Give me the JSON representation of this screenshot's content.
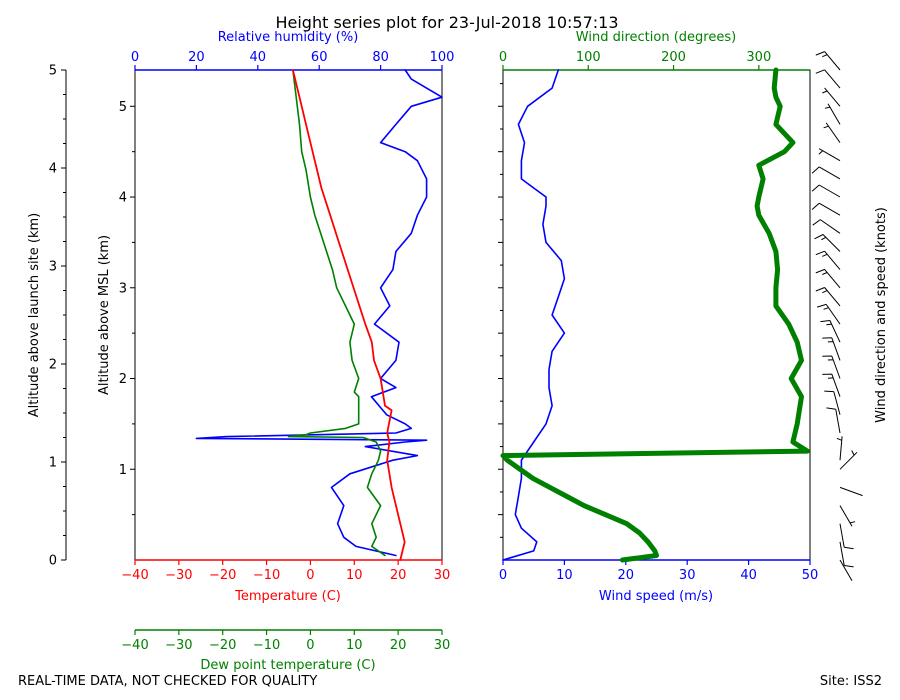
{
  "chart_data": {
    "type": "line",
    "title": "Height series plot for 23-Jul-2018 10:57:13",
    "colors": {
      "temp": "#ff0000",
      "dew": "#008000",
      "rh": "#0000ff",
      "wspd": "#0000ff",
      "wdir": "#008000",
      "barb": "#000000"
    },
    "left_panel": {
      "ylabel_inner": "Altitude above MSL (km)",
      "ylabel_outer": "Altitude above launch site (km)",
      "xlabel_temp": "Temperature (C)",
      "xlabel_dew": "Dew point temperature (C)",
      "xlabel_rh": "Relative humidity (%)",
      "temp_range": [
        -40,
        30
      ],
      "rh_range": [
        0,
        100
      ],
      "msl_range": [
        0.0,
        5.4
      ],
      "temp_ticks": [
        "−40",
        "−30",
        "−20",
        "−10",
        "0",
        "10",
        "20",
        "30"
      ],
      "dew_ticks": [
        "−40",
        "−30",
        "−20",
        "−10",
        "0",
        "10",
        "20",
        "30"
      ],
      "rh_ticks": [
        "0",
        "20",
        "40",
        "60",
        "80",
        "100"
      ],
      "msl_ticks": [
        "1",
        "2",
        "3",
        "4",
        "5"
      ],
      "agl_ticks": [
        "0",
        "1",
        "2",
        "3",
        "4",
        "5"
      ],
      "series": [
        {
          "name": "Temperature",
          "axis": "temp",
          "alt": [
            0.0,
            0.2,
            0.5,
            0.8,
            1.1,
            1.3,
            1.4,
            1.65,
            1.7,
            2.0,
            2.2,
            2.4,
            2.6,
            2.9,
            3.2,
            3.5,
            3.8,
            4.1,
            4.5,
            4.8,
            5.0,
            5.4
          ],
          "values": [
            20.5,
            21.5,
            20,
            18.5,
            17.5,
            18,
            17.5,
            18.5,
            17,
            16,
            14.5,
            14,
            12.5,
            10.5,
            8.5,
            6.5,
            4.5,
            2.5,
            0.5,
            -1,
            -2,
            -4
          ]
        },
        {
          "name": "Dew point",
          "axis": "temp",
          "alt": [
            0.05,
            0.15,
            0.25,
            0.4,
            0.6,
            0.8,
            0.95,
            1.1,
            1.2,
            1.3,
            1.35,
            1.36,
            1.38,
            1.4,
            1.45,
            1.5,
            1.8,
            1.85,
            2.0,
            2.2,
            2.4,
            2.6,
            2.8,
            3.0,
            3.2,
            3.5,
            3.8,
            4.0,
            4.3,
            4.5,
            4.8,
            5.0,
            5.4
          ],
          "values": [
            17,
            14,
            15,
            14,
            16,
            13,
            14,
            15.5,
            16,
            15,
            12,
            -5,
            -1,
            0,
            8,
            11,
            11,
            10,
            11,
            9.5,
            9,
            10,
            8,
            6,
            5,
            3,
            1,
            0,
            -1,
            -2,
            -2.5,
            -3,
            -4
          ]
        },
        {
          "name": "Relative humidity",
          "axis": "rh",
          "alt": [
            0.05,
            0.15,
            0.25,
            0.4,
            0.6,
            0.8,
            0.95,
            1.1,
            1.15,
            1.25,
            1.3,
            1.32,
            1.34,
            1.36,
            1.4,
            1.45,
            1.5,
            1.6,
            1.8,
            1.9,
            2.0,
            2.2,
            2.4,
            2.6,
            2.8,
            3.0,
            3.2,
            3.4,
            3.6,
            3.8,
            4.0,
            4.2,
            4.4,
            4.5,
            4.6,
            4.8,
            5.0,
            5.1,
            5.3,
            5.4
          ],
          "values": [
            85,
            72,
            68,
            66,
            68,
            64,
            70,
            84,
            92,
            75,
            88,
            95,
            20,
            30,
            85,
            90,
            88,
            82,
            77,
            85,
            80,
            85,
            86,
            78,
            83,
            80,
            84,
            85,
            90,
            92,
            95,
            95,
            92,
            88,
            80,
            85,
            90,
            100,
            90,
            88
          ]
        }
      ]
    },
    "right_panel": {
      "xlabel_wspd": "Wind speed (m/s)",
      "xlabel_wdir": "Wind direction (degrees)",
      "barb_label": "Wind direction and speed (knots)",
      "wspd_range": [
        0,
        50
      ],
      "wdir_range": [
        0,
        360
      ],
      "wspd_ticks": [
        "0",
        "10",
        "20",
        "30",
        "40",
        "50"
      ],
      "wdir_ticks": [
        "0",
        "100",
        "200",
        "300"
      ],
      "series": [
        {
          "name": "Wind speed",
          "axis": "wspd",
          "alt": [
            0.0,
            0.1,
            0.2,
            0.35,
            0.5,
            0.7,
            0.9,
            1.1,
            1.3,
            1.5,
            1.7,
            1.9,
            2.1,
            2.3,
            2.5,
            2.7,
            2.9,
            3.1,
            3.3,
            3.5,
            3.7,
            3.9,
            4.0,
            4.1,
            4.2,
            4.4,
            4.6,
            4.8,
            5.0,
            5.2,
            5.4
          ],
          "values": [
            0,
            5,
            5.5,
            3,
            2,
            2.5,
            3,
            3,
            5,
            7,
            8,
            7.5,
            7.5,
            8,
            10,
            8,
            9,
            10,
            9.5,
            7,
            6.5,
            7,
            7,
            5,
            3,
            3,
            3.5,
            2.5,
            4,
            8,
            9
          ]
        },
        {
          "name": "Wind direction",
          "axis": "wdir",
          "alt": [
            0.0,
            0.05,
            0.1,
            0.2,
            0.3,
            0.4,
            0.5,
            0.6,
            0.7,
            0.8,
            0.9,
            1.0,
            1.1,
            1.15,
            1.2,
            1.3,
            1.5,
            1.8,
            2.0,
            2.2,
            2.4,
            2.6,
            2.8,
            3.0,
            3.2,
            3.4,
            3.6,
            3.8,
            3.9,
            4.0,
            4.2,
            4.35,
            4.5,
            4.6,
            4.8,
            5.0,
            5.1,
            5.2,
            5.4
          ],
          "values": [
            140,
            180,
            178,
            170,
            160,
            145,
            120,
            95,
            75,
            55,
            35,
            20,
            5,
            0,
            357,
            340,
            345,
            350,
            338,
            350,
            345,
            335,
            320,
            320,
            322,
            320,
            312,
            300,
            298,
            300,
            305,
            300,
            330,
            340,
            320,
            325,
            320,
            318,
            320
          ]
        }
      ],
      "barbs": {
        "alt": [
          0.0,
          0.2,
          0.4,
          0.6,
          0.8,
          1.0,
          1.1,
          1.4,
          1.6,
          1.8,
          2.0,
          2.2,
          2.4,
          2.6,
          2.8,
          3.0,
          3.2,
          3.4,
          3.6,
          3.8,
          4.0,
          4.2,
          4.4,
          4.6,
          4.8,
          5.0,
          5.2,
          5.4
        ],
        "dir": [
          150,
          170,
          170,
          150,
          110,
          45,
          5,
          350,
          345,
          340,
          340,
          340,
          335,
          325,
          320,
          320,
          320,
          315,
          305,
          300,
          300,
          300,
          300,
          325,
          330,
          320,
          320,
          320
        ],
        "kts": [
          2,
          10,
          10,
          6,
          4,
          5,
          5,
          10,
          13,
          15,
          15,
          15,
          17,
          17,
          16,
          17,
          15,
          15,
          14,
          13,
          12,
          10,
          8,
          6,
          6,
          8,
          13,
          15
        ]
      }
    }
  },
  "footer": {
    "left": "REAL-TIME DATA, NOT CHECKED FOR QUALITY",
    "right": "Site: ISS2"
  }
}
